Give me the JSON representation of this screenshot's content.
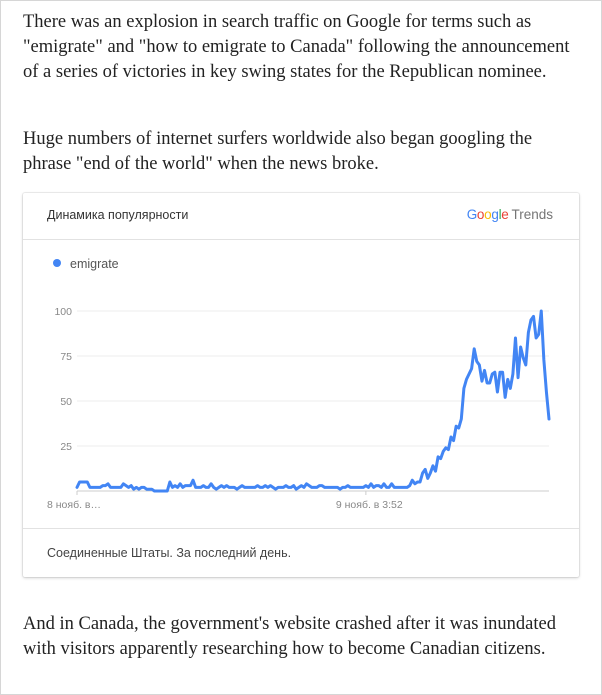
{
  "article": {
    "paragraph_1": "There was an explosion in search traffic on Google for terms such as \"emigrate\" and \"how to emigrate to Canada\" following the announcement of a series of victories in key swing states for the Republican nominee.",
    "paragraph_2": "Huge numbers of internet surfers worldwide also began googling the phrase \"end of the world\" when the news broke.",
    "paragraph_3": "And in Canada, the government's website crashed after it was inundated with visitors apparently researching how to become Canadian citizens."
  },
  "widget": {
    "title": "Динамика популярности",
    "logo": {
      "letters": [
        {
          "char": "G",
          "color": "#4285F4"
        },
        {
          "char": "o",
          "color": "#EA4335"
        },
        {
          "char": "o",
          "color": "#FBBC05"
        },
        {
          "char": "g",
          "color": "#4285F4"
        },
        {
          "char": "l",
          "color": "#34A853"
        },
        {
          "char": "e",
          "color": "#EA4335"
        }
      ],
      "suffix": "Trends"
    },
    "footer": "Соединенные Штаты. За последний день."
  },
  "chart_data": {
    "type": "line",
    "title": "",
    "xlabel": "",
    "ylabel": "",
    "ylim": [
      0,
      100
    ],
    "yticks": [
      25,
      50,
      75,
      100
    ],
    "grid": true,
    "legend": "top-left",
    "x_tick_labels": [
      {
        "label": "8 нояб. в…",
        "index": 0
      },
      {
        "label": "9 нояб. в 3:52",
        "index": 112
      }
    ],
    "series": [
      {
        "name": "emigrate",
        "color": "#4285F4",
        "values": [
          2,
          5,
          5,
          5,
          5,
          2,
          2,
          2,
          2,
          2,
          3,
          3,
          4,
          2,
          2,
          2,
          2,
          2,
          4,
          3,
          2,
          3,
          1,
          2,
          1,
          2,
          2,
          1,
          1,
          1,
          0,
          0,
          0,
          0,
          0,
          0,
          5,
          2,
          3,
          2,
          4,
          2,
          3,
          3,
          3,
          6,
          2,
          2,
          2,
          3,
          2,
          2,
          4,
          2,
          1,
          2,
          3,
          2,
          3,
          2,
          2,
          2,
          1,
          2,
          3,
          2,
          2,
          2,
          2,
          2,
          3,
          2,
          2,
          3,
          2,
          3,
          2,
          1,
          2,
          2,
          2,
          3,
          2,
          2,
          3,
          1,
          2,
          3,
          2,
          4,
          3,
          2,
          2,
          2,
          3,
          3,
          2,
          2,
          2,
          2,
          2,
          2,
          1,
          2,
          2,
          3,
          2,
          2,
          2,
          2,
          2,
          2,
          3,
          2,
          4,
          2,
          3,
          3,
          2,
          4,
          2,
          2,
          4,
          2,
          2,
          2,
          2,
          2,
          2,
          3,
          6,
          4,
          5,
          5,
          10,
          12,
          7,
          10,
          14,
          11,
          19,
          18,
          22,
          24,
          23,
          30,
          28,
          36,
          35,
          40,
          57,
          62,
          65,
          68,
          79,
          72,
          70,
          61,
          67,
          60,
          60,
          65,
          66,
          55,
          66,
          66,
          52,
          62,
          57,
          65,
          85,
          63,
          80,
          74,
          70,
          88,
          95,
          97,
          85,
          87,
          100,
          73,
          55,
          40
        ]
      }
    ]
  }
}
